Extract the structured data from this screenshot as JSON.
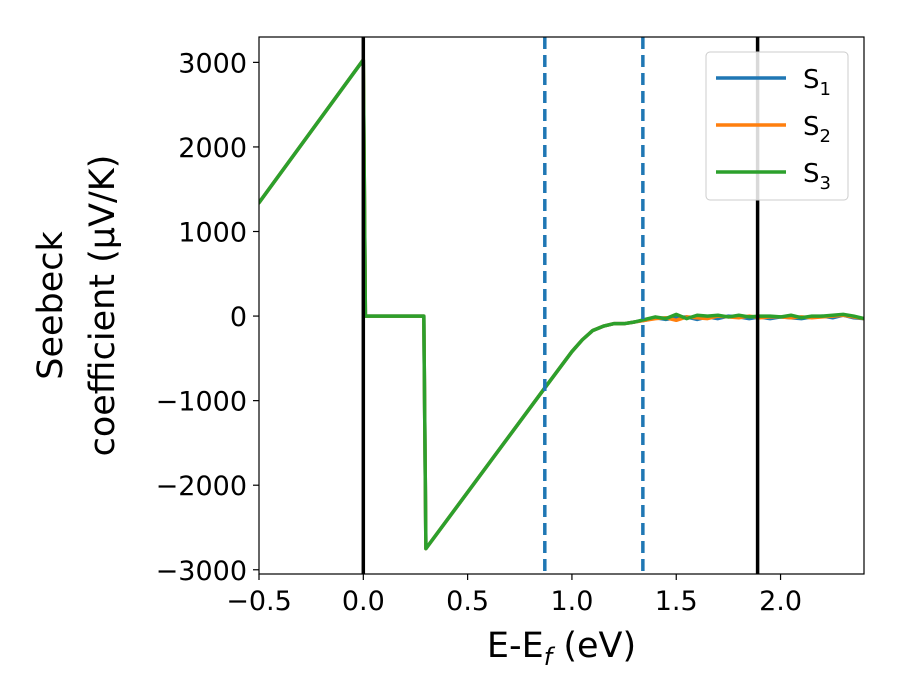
{
  "chart_data": {
    "type": "line",
    "xlabel": "E-E_f (eV)",
    "xlabel_parts": {
      "main": "E-E",
      "sub": "f",
      "rest": " (eV)"
    },
    "ylabel_lines": [
      "Seebeck",
      "coefficient  (μV/K)"
    ],
    "xlim": [
      -0.5,
      2.4
    ],
    "ylim": [
      -3050,
      3300
    ],
    "xticks": [
      -0.5,
      0.0,
      0.5,
      1.0,
      1.5,
      2.0
    ],
    "xtick_labels": [
      "−0.5",
      "0.0",
      "0.5",
      "1.0",
      "1.5",
      "2.0"
    ],
    "yticks": [
      -3000,
      -2000,
      -1000,
      0,
      1000,
      2000,
      3000
    ],
    "ytick_labels": [
      "−3000",
      "−2000",
      "−1000",
      "0",
      "1000",
      "2000",
      "3000"
    ],
    "grid": false,
    "legend_position": "top-right",
    "vlines": [
      {
        "x": 0.0,
        "style": "solid",
        "color": "#000000"
      },
      {
        "x": 1.89,
        "style": "solid",
        "color": "#000000"
      },
      {
        "x": 0.87,
        "style": "dashed",
        "color": "#1f77b4"
      },
      {
        "x": 1.34,
        "style": "dashed",
        "color": "#1f77b4"
      }
    ],
    "series": [
      {
        "name": "S1",
        "label_main": "S",
        "label_sub": "1",
        "color": "#1f77b4",
        "x": [
          -0.5,
          0.0,
          0.01,
          0.04,
          0.29,
          0.3,
          0.87,
          1.0,
          1.05,
          1.1,
          1.15,
          1.2,
          1.25,
          1.3,
          1.35,
          1.4,
          1.45,
          1.5,
          1.55,
          1.6,
          1.65,
          1.7,
          1.75,
          1.8,
          1.85,
          1.9,
          1.95,
          2.0,
          2.05,
          2.1,
          2.15,
          2.2,
          2.25,
          2.3,
          2.35,
          2.4
        ],
        "y": [
          1340,
          3030,
          0,
          0,
          0,
          -2750,
          -850,
          -420,
          -280,
          -170,
          -120,
          -90,
          -90,
          -70,
          -50,
          -20,
          -40,
          -20,
          -10,
          -40,
          -10,
          -30,
          0,
          -10,
          -30,
          -10,
          -30,
          -10,
          -20,
          -30,
          -10,
          0,
          -20,
          10,
          -20,
          -30
        ]
      },
      {
        "name": "S2",
        "label_main": "S",
        "label_sub": "2",
        "color": "#ff7f0e",
        "x": [
          -0.5,
          0.0,
          0.01,
          0.04,
          0.29,
          0.3,
          0.87,
          1.0,
          1.05,
          1.1,
          1.15,
          1.2,
          1.25,
          1.3,
          1.35,
          1.4,
          1.45,
          1.5,
          1.55,
          1.6,
          1.65,
          1.7,
          1.75,
          1.8,
          1.85,
          1.9,
          1.95,
          2.0,
          2.05,
          2.1,
          2.15,
          2.2,
          2.25,
          2.3,
          2.35,
          2.4
        ],
        "y": [
          1340,
          3030,
          0,
          0,
          0,
          -2750,
          -850,
          -420,
          -280,
          -170,
          -120,
          -90,
          -90,
          -70,
          -50,
          -30,
          -20,
          -50,
          -10,
          -20,
          -30,
          0,
          -10,
          -20,
          0,
          -20,
          -10,
          -10,
          -20,
          -10,
          -20,
          -10,
          0,
          10,
          -10,
          -30
        ]
      },
      {
        "name": "S3",
        "label_main": "S",
        "label_sub": "3",
        "color": "#2ca02c",
        "x": [
          -0.5,
          0.0,
          0.01,
          0.04,
          0.29,
          0.3,
          0.87,
          1.0,
          1.05,
          1.1,
          1.15,
          1.2,
          1.25,
          1.3,
          1.35,
          1.4,
          1.45,
          1.5,
          1.55,
          1.6,
          1.65,
          1.7,
          1.75,
          1.8,
          1.85,
          1.9,
          1.95,
          2.0,
          2.05,
          2.1,
          2.15,
          2.2,
          2.25,
          2.3,
          2.35,
          2.4
        ],
        "y": [
          1340,
          3030,
          0,
          0,
          0,
          -2750,
          -850,
          -420,
          -280,
          -170,
          -120,
          -90,
          -90,
          -70,
          -40,
          -10,
          -30,
          20,
          -30,
          10,
          0,
          10,
          -10,
          10,
          -10,
          0,
          0,
          -10,
          10,
          -20,
          0,
          0,
          10,
          20,
          0,
          -30
        ]
      }
    ]
  }
}
